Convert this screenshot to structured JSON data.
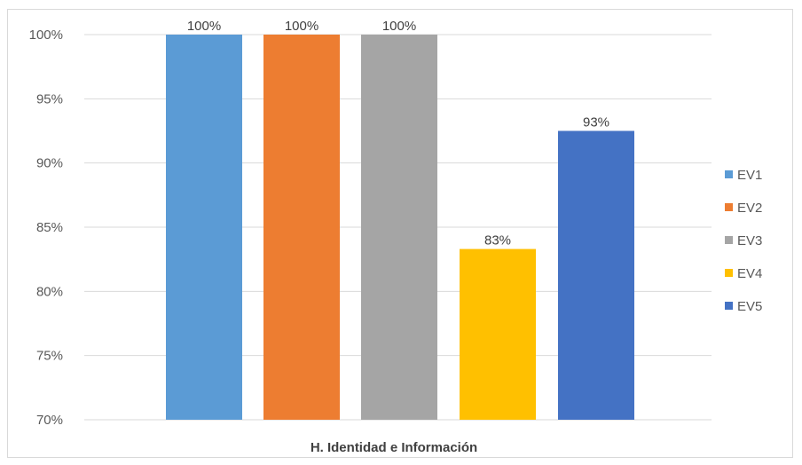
{
  "chart_data": {
    "type": "bar",
    "categories": [
      "H. Identidad e Información"
    ],
    "series": [
      {
        "name": "EV1",
        "values": [
          100
        ],
        "label": "100%",
        "color": "#5B9BD5"
      },
      {
        "name": "EV2",
        "values": [
          100
        ],
        "label": "100%",
        "color": "#ED7D31"
      },
      {
        "name": "EV3",
        "values": [
          100
        ],
        "label": "100%",
        "color": "#A5A5A5"
      },
      {
        "name": "EV4",
        "values": [
          83.3
        ],
        "label": "83%",
        "color": "#FFC000"
      },
      {
        "name": "EV5",
        "values": [
          92.5
        ],
        "label": "93%",
        "color": "#4472C4"
      }
    ],
    "ylim": [
      70,
      100
    ],
    "yticks": [
      70,
      75,
      80,
      85,
      90,
      95,
      100
    ],
    "ytick_labels": [
      "70%",
      "75%",
      "80%",
      "85%",
      "90%",
      "95%",
      "100%"
    ],
    "grid": true,
    "legend_position": "right",
    "gridline_color": "#d9d9d9"
  }
}
